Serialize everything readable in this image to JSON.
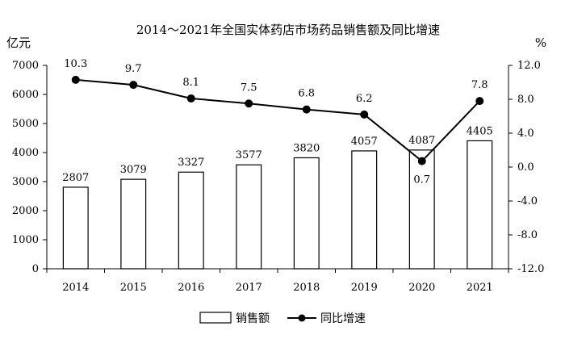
{
  "chart_data": {
    "type": "bar+line",
    "title": "2014～2021年全国实体药店市场药品销售额及同比增速",
    "left_unit": "亿元",
    "right_unit": "%",
    "categories": [
      "2014",
      "2015",
      "2016",
      "2017",
      "2018",
      "2019",
      "2020",
      "2021"
    ],
    "series": [
      {
        "name": "销售额",
        "kind": "bar",
        "axis": "left",
        "values": [
          2807,
          3079,
          3327,
          3577,
          3820,
          4057,
          4087,
          4405
        ]
      },
      {
        "name": "同比增速",
        "kind": "line",
        "axis": "right",
        "values": [
          10.3,
          9.7,
          8.1,
          7.5,
          6.8,
          6.2,
          0.7,
          7.8
        ]
      }
    ],
    "y_left": {
      "min": 0,
      "max": 7000,
      "ticks": [
        "0",
        "1000",
        "2000",
        "3000",
        "4000",
        "5000",
        "6000",
        "7000"
      ]
    },
    "y_right": {
      "min": -12,
      "max": 12,
      "ticks": [
        "-12.0",
        "-8.0",
        "-4.0",
        "0.0",
        "4.0",
        "8.0",
        "12.0"
      ]
    },
    "grid": false,
    "legend_position": "bottom",
    "bar_color": "#ffffff",
    "bar_stroke": "#000000",
    "line_color": "#000000"
  }
}
